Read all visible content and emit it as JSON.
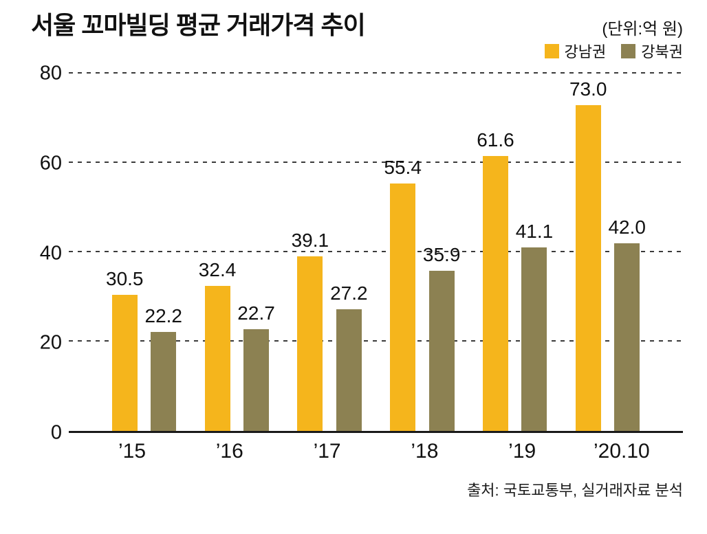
{
  "chart": {
    "title": "서울 꼬마빌딩 평균 거래가격 추이",
    "unit": "(단위:억 원)",
    "source": "출처: 국토교통부, 실거래자료 분석"
  },
  "chart_data": {
    "type": "bar",
    "title": "서울 꼬마빌딩 평균 거래가격 추이",
    "unit": "(단위:억 원)",
    "categories": [
      "’15",
      "’16",
      "’17",
      "’18",
      "’19",
      "’20.10"
    ],
    "series": [
      {
        "name": "강남권",
        "color": "#F5B51C",
        "values": [
          30.5,
          32.4,
          39.1,
          55.4,
          61.6,
          73.0
        ]
      },
      {
        "name": "강북권",
        "color": "#8C8152",
        "values": [
          22.2,
          22.7,
          27.2,
          35.9,
          41.1,
          42.0
        ]
      }
    ],
    "ylim": [
      0,
      80
    ],
    "yticks": [
      0,
      20,
      40,
      60,
      80
    ],
    "grid": "dashed-horizontal",
    "legend_position": "top-right",
    "xlabel": "",
    "ylabel": "",
    "source": "출처: 국토교통부, 실거래자료 분석"
  }
}
